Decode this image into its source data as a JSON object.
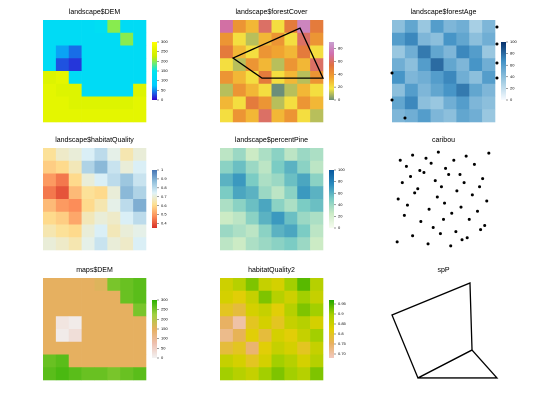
{
  "chart_data": [
    {
      "type": "raster",
      "title": "landscape$DEM",
      "zlim": [
        0,
        300
      ],
      "zticks": [
        0,
        50,
        100,
        150,
        200,
        250,
        300
      ],
      "colors": [
        "#3300cc",
        "#00ccff",
        "#00e5ee",
        "#ccee00",
        "#ffff00"
      ],
      "values": [
        [
          120,
          120,
          120,
          120,
          130,
          200,
          120,
          120
        ],
        [
          120,
          120,
          120,
          120,
          120,
          120,
          200,
          120
        ],
        [
          120,
          60,
          40,
          120,
          120,
          120,
          120,
          120
        ],
        [
          120,
          30,
          20,
          120,
          120,
          120,
          120,
          120
        ],
        [
          250,
          260,
          120,
          120,
          120,
          120,
          120,
          120
        ],
        [
          260,
          250,
          250,
          120,
          120,
          120,
          120,
          250
        ],
        [
          260,
          260,
          250,
          250,
          250,
          250,
          250,
          260
        ],
        [
          260,
          260,
          260,
          260,
          260,
          260,
          260,
          260
        ]
      ]
    },
    {
      "type": "raster",
      "title": "landscape$forestCover",
      "zlim": [
        0,
        90
      ],
      "zticks": [
        0,
        20,
        40,
        60,
        80
      ],
      "colors": [
        "#6b8e7a",
        "#f5e642",
        "#f0a030",
        "#e07040",
        "#d070b0",
        "#c8a0d0"
      ],
      "values": [
        [
          70,
          40,
          30,
          60,
          20,
          50,
          80,
          50
        ],
        [
          40,
          20,
          10,
          30,
          40,
          20,
          60,
          40
        ],
        [
          50,
          30,
          20,
          40,
          35,
          30,
          50,
          20
        ],
        [
          20,
          10,
          40,
          30,
          10,
          40,
          30,
          60
        ],
        [
          40,
          30,
          20,
          50,
          20,
          30,
          10,
          40
        ],
        [
          10,
          40,
          30,
          20,
          0,
          10,
          30,
          20
        ],
        [
          30,
          20,
          50,
          40,
          10,
          20,
          40,
          30
        ],
        [
          20,
          40,
          30,
          60,
          30,
          40,
          20,
          10
        ]
      ],
      "polygons": [
        {
          "x": [
            12.6,
            77.7,
            100,
            40.8
          ],
          "y": [
            62.7,
            92,
            43,
            43
          ]
        }
      ],
      "xlim": [
        0,
        100
      ],
      "ylim": [
        0,
        100
      ]
    },
    {
      "type": "raster",
      "title": "landscape$forestAge",
      "zlim": [
        0,
        100
      ],
      "zticks": [
        0,
        20,
        40,
        60,
        80,
        100
      ],
      "colors": [
        "#f7fbff",
        "#9ecae1",
        "#4292c6",
        "#08306b"
      ],
      "values": [
        [
          40,
          55,
          35,
          60,
          45,
          50,
          30,
          45
        ],
        [
          60,
          70,
          45,
          40,
          65,
          55,
          40,
          50
        ],
        [
          35,
          50,
          75,
          55,
          45,
          70,
          60,
          35
        ],
        [
          50,
          40,
          60,
          80,
          55,
          45,
          65,
          50
        ],
        [
          65,
          45,
          50,
          60,
          70,
          50,
          40,
          60
        ],
        [
          40,
          60,
          45,
          55,
          65,
          75,
          55,
          45
        ],
        [
          55,
          70,
          40,
          35,
          50,
          60,
          45,
          40
        ],
        [
          45,
          50,
          60,
          45,
          40,
          55,
          50,
          35
        ]
      ],
      "points": {
        "x": [
          101.9,
          101.9,
          101.9,
          101.9,
          0,
          0,
          12.6
        ],
        "y": [
          93.1,
          76.5,
          57.8,
          43.1,
          48,
          21.6,
          3.9
        ]
      },
      "xlim": [
        0,
        100
      ],
      "ylim": [
        0,
        100
      ]
    },
    {
      "type": "raster",
      "title": "landscape$habitatQuality",
      "zlim": [
        0.35,
        1
      ],
      "zticks": [
        0.4,
        0.5,
        0.6,
        0.7,
        0.8,
        0.9,
        1
      ],
      "colors": [
        "#d73027",
        "#fc8d59",
        "#fee090",
        "#e0f3f8",
        "#91bfdb",
        "#4575b4"
      ],
      "values": [
        [
          0.62,
          0.68,
          0.7,
          0.75,
          0.8,
          0.72,
          0.65,
          0.7
        ],
        [
          0.58,
          0.6,
          0.66,
          0.82,
          0.88,
          0.78,
          0.7,
          0.75
        ],
        [
          0.5,
          0.45,
          0.6,
          0.7,
          0.75,
          0.8,
          0.85,
          0.78
        ],
        [
          0.45,
          0.4,
          0.55,
          0.62,
          0.6,
          0.7,
          0.88,
          0.82
        ],
        [
          0.55,
          0.5,
          0.48,
          0.6,
          0.65,
          0.72,
          0.8,
          0.9
        ],
        [
          0.6,
          0.58,
          0.52,
          0.66,
          0.7,
          0.68,
          0.75,
          0.8
        ],
        [
          0.65,
          0.62,
          0.6,
          0.7,
          0.75,
          0.66,
          0.7,
          0.72
        ],
        [
          0.7,
          0.68,
          0.65,
          0.72,
          0.78,
          0.7,
          0.68,
          0.75
        ]
      ]
    },
    {
      "type": "raster",
      "title": "landscape$percentPine",
      "zlim": [
        0,
        100
      ],
      "zticks": [
        0,
        20,
        40,
        60,
        80,
        100
      ],
      "colors": [
        "#f7fcf0",
        "#ccebc5",
        "#7bccc4",
        "#2b8cbe",
        "#08589e"
      ],
      "values": [
        [
          30,
          40,
          25,
          35,
          45,
          30,
          40,
          35
        ],
        [
          45,
          55,
          40,
          30,
          50,
          60,
          45,
          30
        ],
        [
          60,
          70,
          50,
          35,
          40,
          55,
          65,
          45
        ],
        [
          50,
          65,
          60,
          40,
          30,
          45,
          70,
          60
        ],
        [
          35,
          45,
          55,
          65,
          45,
          35,
          50,
          55
        ],
        [
          25,
          30,
          45,
          60,
          70,
          55,
          40,
          35
        ],
        [
          40,
          35,
          30,
          45,
          60,
          65,
          50,
          30
        ],
        [
          30,
          25,
          35,
          40,
          45,
          50,
          40,
          25
        ]
      ]
    },
    {
      "type": "scatter",
      "title": "caribou",
      "xlim": [
        0,
        100
      ],
      "ylim": [
        0,
        100
      ],
      "x": [
        8,
        14,
        20,
        27,
        33,
        38,
        45,
        52,
        60,
        66,
        72,
        80,
        88,
        94,
        10,
        18,
        25,
        31,
        42,
        48,
        55,
        63,
        70,
        78,
        85,
        92,
        6,
        15,
        22,
        36,
        44,
        51,
        58,
        67,
        75,
        83,
        90,
        12,
        28,
        40,
        50,
        62,
        73,
        86,
        5,
        20,
        35,
        47,
        57,
        68
      ],
      "y": [
        88,
        82,
        93,
        78,
        90,
        85,
        96,
        80,
        88,
        74,
        92,
        84,
        70,
        95,
        66,
        72,
        60,
        76,
        68,
        62,
        74,
        58,
        66,
        54,
        62,
        48,
        50,
        44,
        56,
        40,
        52,
        46,
        36,
        42,
        30,
        38,
        24,
        34,
        28,
        22,
        30,
        18,
        12,
        20,
        8,
        14,
        6,
        16,
        4,
        10
      ]
    },
    {
      "type": "raster",
      "title": "maps$DEM",
      "zlim": [
        0,
        300
      ],
      "zticks": [
        0,
        50,
        100,
        150,
        200,
        250,
        300
      ],
      "colors": [
        "#f2f2f2",
        "#eec0b0",
        "#e6b060",
        "#a0d040",
        "#2bb000"
      ],
      "values": [
        [
          150,
          150,
          150,
          150,
          160,
          250,
          260,
          270
        ],
        [
          150,
          150,
          150,
          150,
          150,
          150,
          260,
          270
        ],
        [
          150,
          150,
          150,
          150,
          150,
          150,
          150,
          250
        ],
        [
          150,
          20,
          10,
          150,
          150,
          150,
          150,
          150
        ],
        [
          150,
          10,
          30,
          150,
          150,
          150,
          150,
          150
        ],
        [
          150,
          150,
          150,
          150,
          150,
          150,
          150,
          150
        ],
        [
          260,
          270,
          150,
          150,
          150,
          150,
          150,
          150
        ],
        [
          270,
          280,
          270,
          260,
          260,
          250,
          260,
          270
        ]
      ]
    },
    {
      "type": "raster",
      "title": "habitatQuality2",
      "zlim": [
        0.68,
        0.97
      ],
      "zticks": [
        {
          "value": 0.7,
          "label": "0.70"
        },
        0.75,
        0.8,
        0.85,
        0.9,
        0.95
      ],
      "colors": [
        "#f2c9c0",
        "#e8b060",
        "#e0d000",
        "#a8d000",
        "#20a800"
      ],
      "values": [
        [
          0.85,
          0.88,
          0.92,
          0.86,
          0.84,
          0.9,
          0.94,
          0.88
        ],
        [
          0.84,
          0.82,
          0.86,
          0.92,
          0.88,
          0.85,
          0.9,
          0.86
        ],
        [
          0.8,
          0.78,
          0.84,
          0.86,
          0.82,
          0.88,
          0.92,
          0.9
        ],
        [
          0.75,
          0.7,
          0.8,
          0.84,
          0.8,
          0.86,
          0.88,
          0.84
        ],
        [
          0.72,
          0.76,
          0.82,
          0.78,
          0.84,
          0.82,
          0.86,
          0.9
        ],
        [
          0.78,
          0.8,
          0.74,
          0.82,
          0.86,
          0.84,
          0.8,
          0.86
        ],
        [
          0.86,
          0.84,
          0.8,
          0.84,
          0.9,
          0.88,
          0.84,
          0.88
        ],
        [
          0.9,
          0.88,
          0.86,
          0.9,
          0.92,
          0.9,
          0.88,
          0.92
        ]
      ]
    },
    {
      "type": "polygon",
      "title": "spP",
      "xlim": [
        0,
        100
      ],
      "ylim": [
        0,
        100
      ],
      "polygons": [
        {
          "x": [
            0,
            75.7,
            77.7,
            25.2
          ],
          "y": [
            63.7,
            95.1,
            29.4,
            2
          ]
        },
        {
          "x": [
            77.7,
            101.9,
            25.2
          ],
          "y": [
            29.4,
            2,
            2
          ]
        }
      ]
    }
  ]
}
